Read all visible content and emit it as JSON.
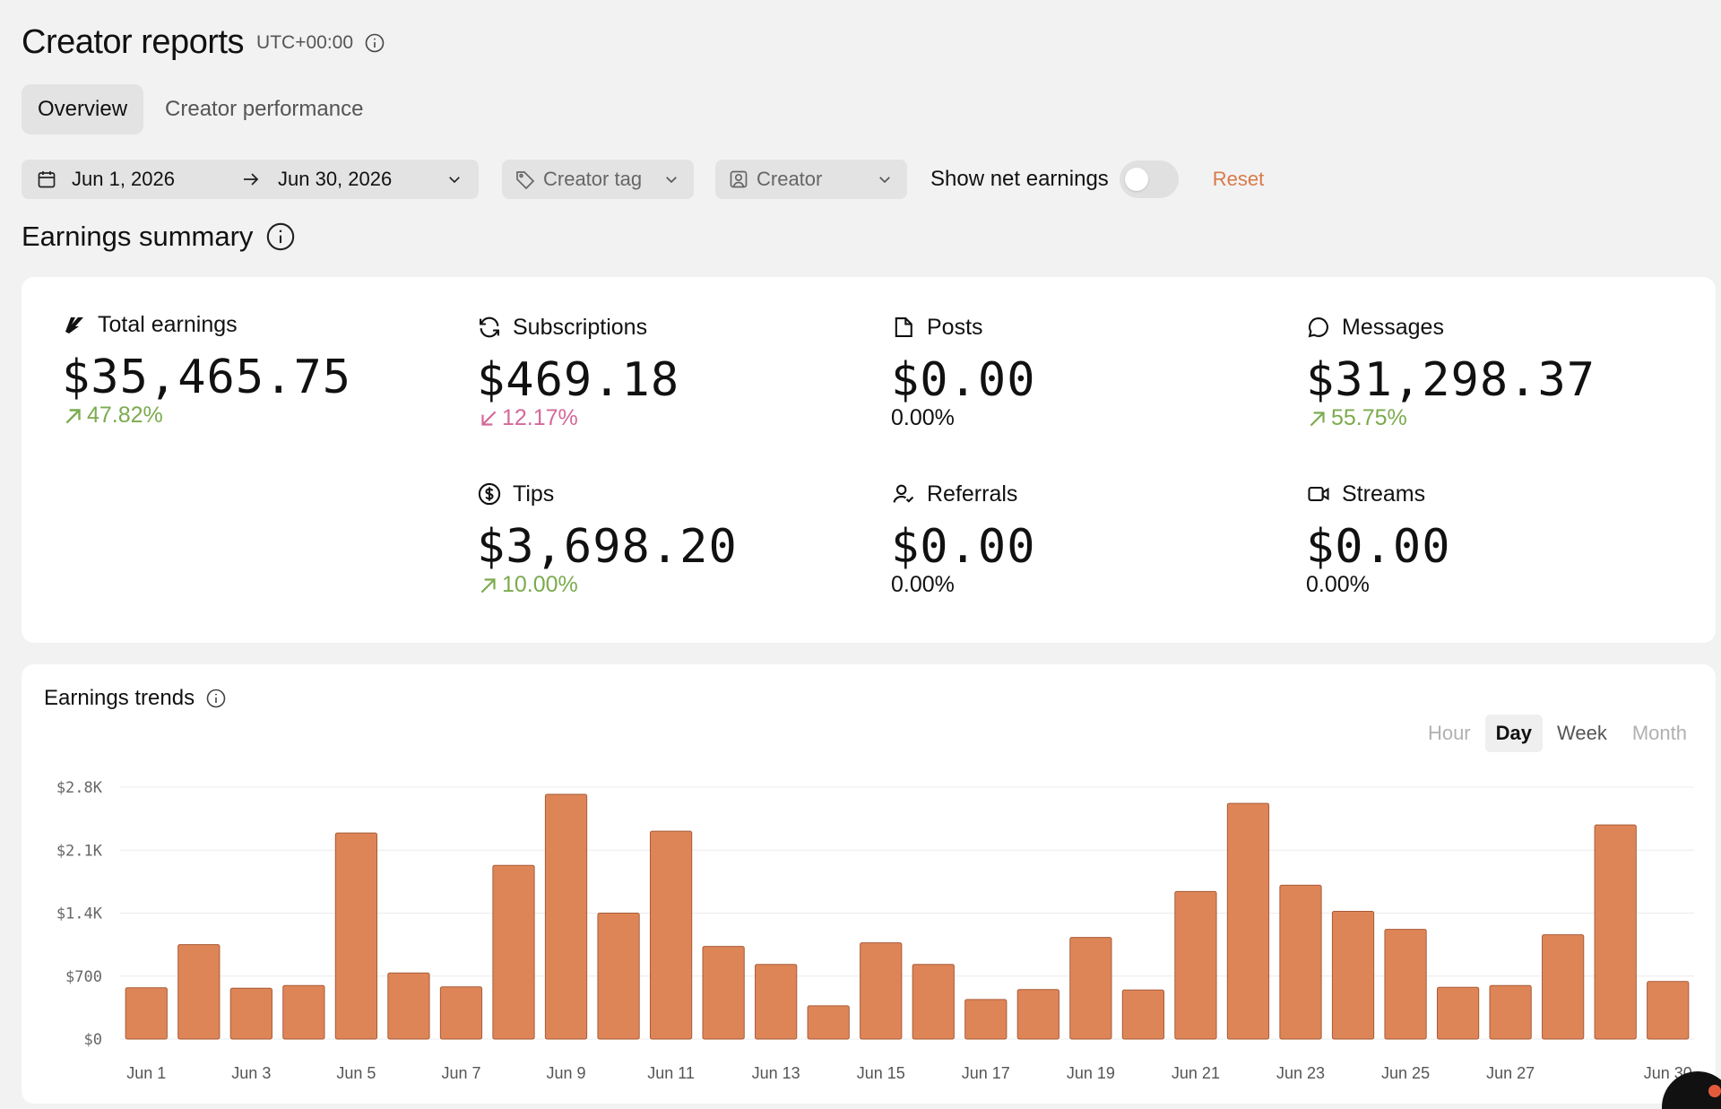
{
  "header": {
    "title": "Creator reports",
    "timezone": "UTC+00:00"
  },
  "tabs": [
    {
      "label": "Overview",
      "active": true
    },
    {
      "label": "Creator performance",
      "active": false
    }
  ],
  "filters": {
    "date_start": "Jun 1, 2026",
    "date_end": "Jun 30, 2026",
    "creator_tag_placeholder": "Creator tag",
    "creator_placeholder": "Creator",
    "net_earnings_label": "Show net earnings",
    "net_earnings_enabled": false,
    "reset_label": "Reset"
  },
  "summary": {
    "title": "Earnings summary",
    "stats": [
      {
        "key": "total",
        "label": "Total earnings",
        "icon": "brand-icon",
        "value": "$35,465.75",
        "change": "47.82%",
        "trend": "up"
      },
      {
        "key": "subscriptions",
        "label": "Subscriptions",
        "icon": "refresh-icon",
        "value": "$469.18",
        "change": "12.17%",
        "trend": "down"
      },
      {
        "key": "posts",
        "label": "Posts",
        "icon": "document-icon",
        "value": "$0.00",
        "change": "0.00%",
        "trend": "flat"
      },
      {
        "key": "messages",
        "label": "Messages",
        "icon": "message-icon",
        "value": "$31,298.37",
        "change": "55.75%",
        "trend": "up"
      },
      {
        "key": "tips",
        "label": "Tips",
        "icon": "dollar-icon",
        "value": "$3,698.20",
        "change": "10.00%",
        "trend": "up"
      },
      {
        "key": "referrals",
        "label": "Referrals",
        "icon": "user-plus-icon",
        "value": "$0.00",
        "change": "0.00%",
        "trend": "flat"
      },
      {
        "key": "streams",
        "label": "Streams",
        "icon": "video-icon",
        "value": "$0.00",
        "change": "0.00%",
        "trend": "flat"
      }
    ],
    "colors": {
      "up": "#7bab4e",
      "down": "#d4689a"
    }
  },
  "trends": {
    "title": "Earnings trends",
    "granularity": [
      {
        "label": "Hour",
        "state": "disabled"
      },
      {
        "label": "Day",
        "state": "active"
      },
      {
        "label": "Week",
        "state": "normal"
      },
      {
        "label": "Month",
        "state": "disabled"
      }
    ]
  },
  "chart_data": {
    "type": "bar",
    "bar_color": "#de8558",
    "categories": [
      "Jun 1",
      "Jun 2",
      "Jun 3",
      "Jun 4",
      "Jun 5",
      "Jun 6",
      "Jun 7",
      "Jun 8",
      "Jun 9",
      "Jun 10",
      "Jun 11",
      "Jun 12",
      "Jun 13",
      "Jun 14",
      "Jun 15",
      "Jun 16",
      "Jun 17",
      "Jun 18",
      "Jun 19",
      "Jun 20",
      "Jun 21",
      "Jun 22",
      "Jun 23",
      "Jun 24",
      "Jun 25",
      "Jun 26",
      "Jun 27",
      "Jun 28",
      "Jun 29",
      "Jun 30"
    ],
    "values": [
      570,
      1050,
      565,
      595,
      2290,
      735,
      580,
      1930,
      2720,
      1400,
      2310,
      1030,
      830,
      370,
      1070,
      830,
      440,
      550,
      1130,
      545,
      1640,
      2620,
      1710,
      1420,
      1220,
      575,
      595,
      1160,
      2380,
      640
    ],
    "x_tick_labels": [
      "Jun 1",
      "Jun 3",
      "Jun 5",
      "Jun 7",
      "Jun 9",
      "Jun 11",
      "Jun 13",
      "Jun 15",
      "Jun 17",
      "Jun 19",
      "Jun 21",
      "Jun 23",
      "Jun 25",
      "Jun 27",
      "Jun 30"
    ],
    "y_ticks": [
      0,
      700,
      1400,
      2100,
      2800
    ],
    "y_tick_labels": [
      "$0",
      "$700",
      "$1.4K",
      "$2.1K",
      "$2.8K"
    ],
    "ylim": [
      0,
      2800
    ],
    "grid": true,
    "title": "",
    "xlabel": "",
    "ylabel": ""
  }
}
